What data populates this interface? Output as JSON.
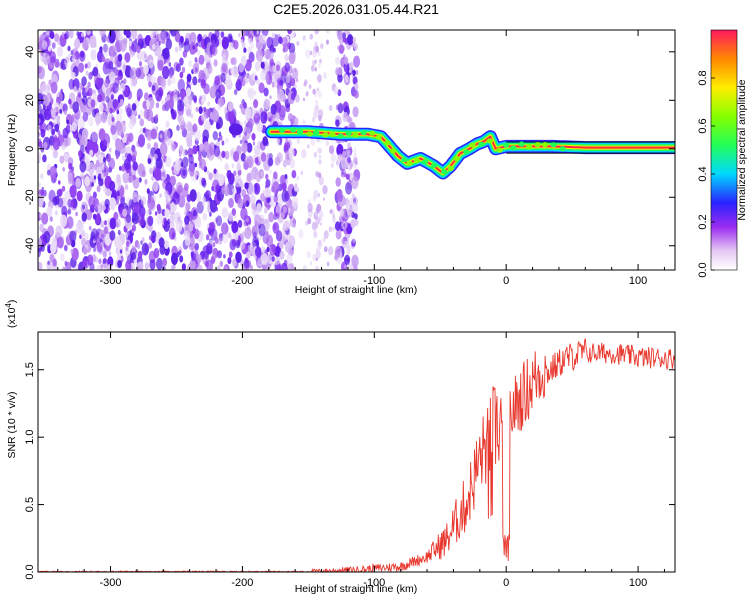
{
  "title": "C2E5.2026.031.05.44.R21",
  "chart_data": [
    {
      "type": "heatmap",
      "xlabel": "Height of straight line (km)",
      "ylabel": "Frequency (Hz)",
      "xlim": [
        -355,
        128
      ],
      "ylim": [
        -50,
        49
      ],
      "x_ticks": [
        -300,
        -200,
        -100,
        0,
        100
      ],
      "y_ticks": [
        -40,
        -20,
        0,
        20,
        40
      ],
      "colorbar": {
        "label": "Normalized spectral amplitude",
        "range": [
          0,
          1
        ],
        "ticks": [
          0.0,
          0.2,
          0.4,
          0.6,
          0.8
        ]
      },
      "ridge": [
        {
          "x": -175,
          "y": 7
        },
        {
          "x": -150,
          "y": 7
        },
        {
          "x": -125,
          "y": 6
        },
        {
          "x": -105,
          "y": 6
        },
        {
          "x": -95,
          "y": 5
        },
        {
          "x": -90,
          "y": 2
        },
        {
          "x": -82,
          "y": -3
        },
        {
          "x": -75,
          "y": -6
        },
        {
          "x": -65,
          "y": -4
        },
        {
          "x": -55,
          "y": -7
        },
        {
          "x": -48,
          "y": -10
        },
        {
          "x": -42,
          "y": -7
        },
        {
          "x": -35,
          "y": -2
        },
        {
          "x": -28,
          "y": 0
        },
        {
          "x": -22,
          "y": 2
        },
        {
          "x": -17,
          "y": 3
        },
        {
          "x": -12,
          "y": 5
        },
        {
          "x": -8,
          "y": 0
        },
        {
          "x": 0,
          "y": 1
        },
        {
          "x": 15,
          "y": 1
        },
        {
          "x": 35,
          "y": 1
        },
        {
          "x": 60,
          "y": 0.5
        },
        {
          "x": 128,
          "y": 0.5
        }
      ]
    },
    {
      "type": "line",
      "xlabel": "Height of straight line (km)",
      "ylabel": "SNR (10 * v/v)",
      "multiplier": "(x10",
      "multiplier_exp": "4",
      "multiplier_close": ")",
      "xlim": [
        -355,
        128
      ],
      "ylim": [
        0,
        1.78
      ],
      "x_ticks": [
        -300,
        -200,
        -100,
        0,
        100
      ],
      "y_ticks": [
        0.0,
        0.5,
        1.0,
        1.5
      ],
      "color": "#e8382e",
      "trend": [
        {
          "x": -355,
          "y": 0.0
        },
        {
          "x": -140,
          "y": 0.0
        },
        {
          "x": -110,
          "y": 0.01
        },
        {
          "x": -80,
          "y": 0.03
        },
        {
          "x": -60,
          "y": 0.1
        },
        {
          "x": -45,
          "y": 0.2
        },
        {
          "x": -30,
          "y": 0.45
        },
        {
          "x": -20,
          "y": 0.75
        },
        {
          "x": -10,
          "y": 0.95
        },
        {
          "x": 0,
          "y": 1.05
        },
        {
          "x": 10,
          "y": 1.2
        },
        {
          "x": 25,
          "y": 1.4
        },
        {
          "x": 45,
          "y": 1.55
        },
        {
          "x": 60,
          "y": 1.6
        },
        {
          "x": 80,
          "y": 1.6
        },
        {
          "x": 100,
          "y": 1.57
        },
        {
          "x": 128,
          "y": 1.56
        }
      ]
    }
  ]
}
